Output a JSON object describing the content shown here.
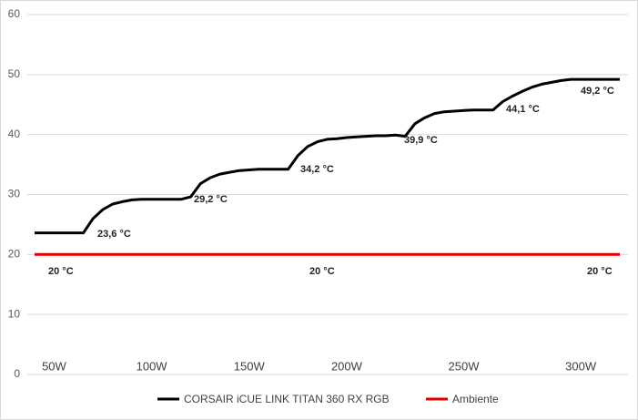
{
  "chart_data": {
    "type": "line",
    "categories": [
      null,
      null,
      "50W",
      null,
      null,
      null,
      null,
      null,
      null,
      null,
      null,
      null,
      "100W",
      null,
      null,
      null,
      null,
      null,
      null,
      null,
      null,
      null,
      "150W",
      null,
      null,
      null,
      null,
      null,
      null,
      null,
      null,
      null,
      "200W",
      null,
      null,
      null,
      null,
      null,
      null,
      null,
      null,
      null,
      null,
      null,
      "250W",
      null,
      null,
      null,
      null,
      null,
      null,
      null,
      null,
      null,
      null,
      null,
      "300W",
      null,
      null,
      null,
      null
    ],
    "series": [
      {
        "name": "CORSAIR iCUE LINK TITAN 360 RX RGB",
        "color": "#000000",
        "values": [
          23.6,
          23.6,
          23.6,
          23.6,
          23.6,
          23.6,
          26.0,
          27.5,
          28.4,
          28.8,
          29.1,
          29.2,
          29.2,
          29.2,
          29.2,
          29.2,
          29.6,
          31.8,
          32.8,
          33.4,
          33.7,
          34.0,
          34.1,
          34.2,
          34.2,
          34.2,
          34.2,
          36.5,
          38.0,
          38.8,
          39.2,
          39.3,
          39.5,
          39.6,
          39.7,
          39.8,
          39.8,
          39.9,
          39.7,
          41.8,
          42.8,
          43.5,
          43.8,
          43.9,
          44.0,
          44.1,
          44.1,
          44.1,
          45.5,
          46.4,
          47.2,
          47.9,
          48.4,
          48.7,
          49.0,
          49.2,
          49.2,
          49.2,
          49.2,
          49.2,
          49.2
        ],
        "annotations": [
          "23,6 °C",
          "29,2 °C",
          "34,2 °C",
          "39,9 °C",
          "44,1 °C",
          "49,2 °C"
        ]
      },
      {
        "name": "Ambiente",
        "color": "#e00000",
        "values": [
          20,
          20,
          20,
          20,
          20,
          20,
          20,
          20,
          20,
          20,
          20,
          20,
          20,
          20,
          20,
          20,
          20,
          20,
          20,
          20,
          20,
          20,
          20,
          20,
          20,
          20,
          20,
          20,
          20,
          20,
          20,
          20,
          20,
          20,
          20,
          20,
          20,
          20,
          20,
          20,
          20,
          20,
          20,
          20,
          20,
          20,
          20,
          20,
          20,
          20,
          20,
          20,
          20,
          20,
          20,
          20,
          20,
          20,
          20,
          20,
          20
        ],
        "annotations": [
          "20 °C",
          "20 °C",
          "20 °C"
        ]
      }
    ],
    "ylim": [
      0,
      60
    ],
    "yticks": [
      0,
      10,
      20,
      30,
      40,
      50,
      60
    ],
    "grid": true,
    "legend": "bottom"
  }
}
